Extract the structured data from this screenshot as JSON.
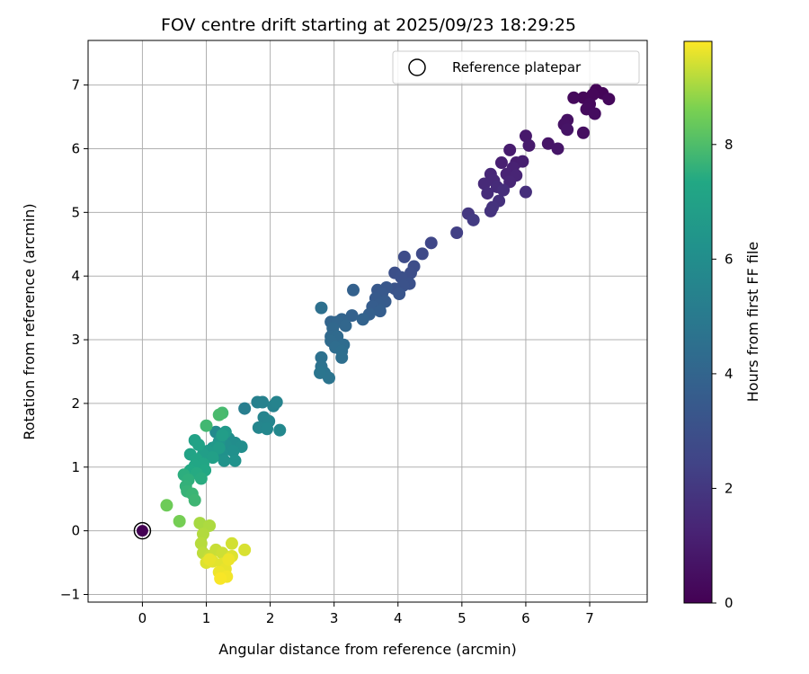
{
  "chart_data": {
    "type": "scatter",
    "title": "FOV centre drift starting at 2025/09/23 18:29:25",
    "xlabel": "Angular distance from reference (arcmin)",
    "ylabel": "Rotation from reference (arcmin)",
    "xlim": [
      -0.85,
      7.9
    ],
    "ylim": [
      -1.12,
      7.7
    ],
    "xticks": [
      0,
      1,
      2,
      3,
      4,
      5,
      6,
      7
    ],
    "yticks": [
      -1,
      0,
      1,
      2,
      3,
      4,
      5,
      6,
      7
    ],
    "grid": true,
    "legend": {
      "position": "upper-right",
      "entries": [
        "Reference platepar"
      ]
    },
    "colorbar": {
      "label": "Hours from first FF file",
      "range": [
        0,
        9.8
      ],
      "ticks": [
        0,
        2,
        4,
        6,
        8
      ],
      "colormap": "viridis"
    },
    "reference_point": {
      "x": 0,
      "y": 0,
      "c": 0
    },
    "points": [
      [
        7.1,
        6.92,
        0.1
      ],
      [
        7.2,
        6.87,
        0.15
      ],
      [
        7.05,
        6.85,
        0.2
      ],
      [
        6.9,
        6.8,
        0.2
      ],
      [
        7.3,
        6.78,
        0.25
      ],
      [
        6.75,
        6.8,
        0.3
      ],
      [
        7.0,
        6.7,
        0.3
      ],
      [
        6.95,
        6.62,
        0.35
      ],
      [
        7.08,
        6.55,
        0.4
      ],
      [
        6.9,
        6.25,
        0.45
      ],
      [
        6.65,
        6.45,
        0.55
      ],
      [
        6.6,
        6.38,
        0.6
      ],
      [
        6.65,
        6.3,
        0.65
      ],
      [
        6.35,
        6.08,
        0.7
      ],
      [
        6.5,
        6.0,
        0.75
      ],
      [
        6.0,
        6.2,
        0.85
      ],
      [
        6.05,
        6.05,
        0.9
      ],
      [
        5.75,
        5.98,
        0.95
      ],
      [
        5.85,
        5.78,
        1.0
      ],
      [
        5.95,
        5.8,
        1.05
      ],
      [
        5.62,
        5.78,
        1.1
      ],
      [
        5.8,
        5.7,
        1.15
      ],
      [
        5.7,
        5.6,
        1.2
      ],
      [
        5.85,
        5.58,
        1.25
      ],
      [
        5.75,
        5.48,
        1.3
      ],
      [
        5.45,
        5.6,
        1.35
      ],
      [
        5.5,
        5.5,
        1.4
      ],
      [
        5.35,
        5.45,
        1.45
      ],
      [
        5.55,
        5.4,
        1.5
      ],
      [
        5.4,
        5.3,
        1.55
      ],
      [
        5.65,
        5.35,
        1.6
      ],
      [
        6.0,
        5.32,
        1.65
      ],
      [
        5.58,
        5.18,
        1.7
      ],
      [
        5.48,
        5.08,
        1.75
      ],
      [
        5.45,
        5.02,
        1.8
      ],
      [
        5.1,
        4.98,
        2.0
      ],
      [
        5.18,
        4.88,
        2.1
      ],
      [
        4.92,
        4.68,
        2.3
      ],
      [
        4.52,
        4.52,
        2.6
      ],
      [
        4.38,
        4.35,
        2.7
      ],
      [
        4.1,
        4.3,
        2.8
      ],
      [
        4.25,
        4.15,
        2.85
      ],
      [
        4.2,
        4.05,
        2.9
      ],
      [
        3.95,
        4.05,
        2.95
      ],
      [
        4.05,
        3.98,
        3.0
      ],
      [
        4.18,
        3.88,
        3.05
      ],
      [
        4.08,
        3.85,
        3.1
      ],
      [
        3.95,
        3.8,
        3.15
      ],
      [
        4.02,
        3.72,
        3.2
      ],
      [
        3.82,
        3.82,
        3.3
      ],
      [
        3.68,
        3.78,
        3.35
      ],
      [
        3.75,
        3.72,
        3.4
      ],
      [
        3.65,
        3.65,
        3.45
      ],
      [
        3.8,
        3.6,
        3.5
      ],
      [
        3.7,
        3.55,
        3.55
      ],
      [
        3.6,
        3.52,
        3.6
      ],
      [
        3.72,
        3.45,
        3.65
      ],
      [
        3.55,
        3.4,
        3.7
      ],
      [
        3.3,
        3.78,
        3.75
      ],
      [
        3.28,
        3.38,
        3.8
      ],
      [
        3.45,
        3.32,
        3.85
      ],
      [
        3.12,
        3.32,
        3.9
      ],
      [
        2.95,
        3.28,
        3.95
      ],
      [
        3.05,
        3.28,
        4.0
      ],
      [
        3.18,
        3.22,
        4.05
      ],
      [
        2.98,
        3.18,
        4.1
      ],
      [
        2.95,
        3.05,
        4.15
      ],
      [
        3.05,
        3.05,
        4.2
      ],
      [
        2.95,
        2.98,
        4.25
      ],
      [
        3.15,
        2.92,
        4.3
      ],
      [
        3.02,
        2.88,
        4.35
      ],
      [
        3.12,
        2.82,
        4.4
      ],
      [
        3.12,
        2.72,
        4.45
      ],
      [
        2.8,
        3.5,
        4.5
      ],
      [
        2.8,
        2.72,
        4.55
      ],
      [
        2.8,
        2.58,
        4.6
      ],
      [
        2.85,
        2.48,
        4.65
      ],
      [
        2.92,
        2.4,
        4.7
      ],
      [
        2.78,
        2.48,
        4.75
      ],
      [
        1.6,
        1.92,
        5.2
      ],
      [
        1.8,
        2.02,
        5.3
      ],
      [
        1.88,
        2.02,
        5.35
      ],
      [
        2.05,
        1.96,
        5.4
      ],
      [
        2.1,
        2.02,
        5.45
      ],
      [
        1.9,
        1.78,
        5.5
      ],
      [
        1.98,
        1.72,
        5.55
      ],
      [
        1.82,
        1.62,
        5.6
      ],
      [
        1.95,
        1.6,
        5.65
      ],
      [
        2.15,
        1.58,
        5.7
      ],
      [
        1.15,
        1.55,
        5.8
      ],
      [
        1.28,
        1.48,
        5.85
      ],
      [
        1.35,
        1.45,
        5.9
      ],
      [
        1.45,
        1.38,
        5.95
      ],
      [
        1.55,
        1.32,
        6.0
      ],
      [
        1.3,
        1.35,
        6.05
      ],
      [
        1.42,
        1.25,
        6.1
      ],
      [
        1.25,
        1.22,
        6.15
      ],
      [
        1.45,
        1.1,
        6.2
      ],
      [
        1.28,
        1.1,
        6.25
      ],
      [
        1.1,
        1.3,
        6.3
      ],
      [
        1.2,
        1.4,
        6.35
      ],
      [
        1.15,
        1.32,
        6.5
      ],
      [
        1.3,
        1.55,
        6.55
      ],
      [
        1.08,
        1.22,
        6.6
      ],
      [
        1.02,
        1.25,
        6.65
      ],
      [
        1.2,
        1.3,
        6.7
      ],
      [
        1.25,
        1.5,
        6.75
      ],
      [
        0.95,
        1.2,
        6.8
      ],
      [
        1.1,
        1.15,
        6.85
      ],
      [
        0.82,
        1.42,
        7.0
      ],
      [
        0.88,
        1.35,
        7.05
      ],
      [
        0.75,
        1.2,
        7.1
      ],
      [
        0.85,
        1.12,
        7.15
      ],
      [
        0.95,
        1.05,
        7.2
      ],
      [
        0.82,
        1.02,
        7.25
      ],
      [
        0.98,
        0.95,
        7.3
      ],
      [
        0.75,
        0.95,
        7.35
      ],
      [
        0.85,
        0.9,
        7.4
      ],
      [
        0.92,
        0.82,
        7.45
      ],
      [
        0.65,
        0.88,
        7.5
      ],
      [
        0.72,
        0.8,
        7.55
      ],
      [
        0.68,
        0.7,
        7.6
      ],
      [
        0.7,
        0.62,
        7.65
      ],
      [
        0.78,
        0.58,
        7.7
      ],
      [
        0.82,
        0.48,
        7.75
      ],
      [
        1.0,
        1.65,
        7.8
      ],
      [
        1.25,
        1.85,
        7.85
      ],
      [
        1.2,
        1.82,
        7.9
      ],
      [
        0.38,
        0.4,
        8.4
      ],
      [
        0.58,
        0.15,
        8.5
      ],
      [
        0.9,
        0.12,
        9.0
      ],
      [
        1.05,
        0.08,
        9.05
      ],
      [
        0.95,
        -0.05,
        9.1
      ],
      [
        0.92,
        -0.2,
        9.15
      ],
      [
        0.95,
        -0.35,
        9.2
      ],
      [
        1.05,
        -0.4,
        9.25
      ],
      [
        1.15,
        -0.3,
        9.3
      ],
      [
        1.25,
        -0.35,
        9.35
      ],
      [
        1.4,
        -0.2,
        9.4
      ],
      [
        1.6,
        -0.3,
        9.45
      ],
      [
        1.4,
        -0.4,
        9.5
      ],
      [
        1.0,
        -0.5,
        9.5
      ],
      [
        1.1,
        -0.48,
        9.55
      ],
      [
        1.25,
        -0.52,
        9.55
      ],
      [
        1.3,
        -0.6,
        9.6
      ],
      [
        1.2,
        -0.65,
        9.65
      ],
      [
        1.32,
        -0.72,
        9.7
      ],
      [
        1.22,
        -0.75,
        9.75
      ],
      [
        1.05,
        -0.45,
        9.6
      ],
      [
        1.35,
        -0.45,
        9.65
      ]
    ]
  }
}
